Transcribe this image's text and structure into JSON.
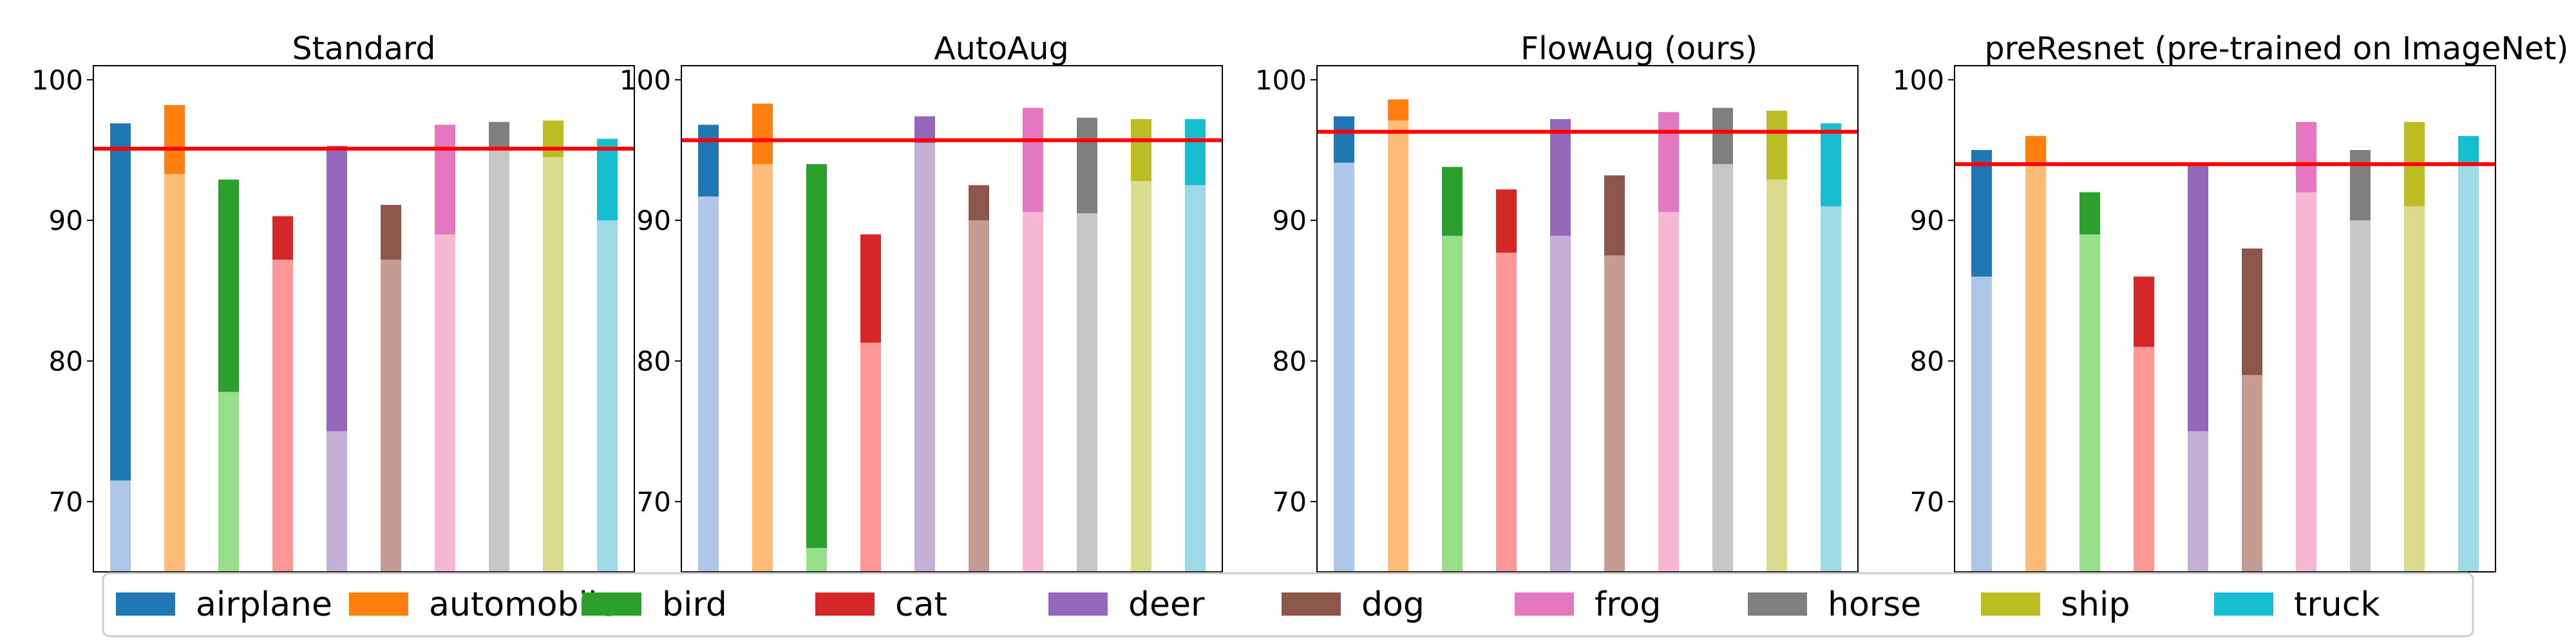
{
  "chart_data": {
    "type": "bar",
    "variant": "floating range bars (light = lower value, dark = upper value) with red horizontal mean line",
    "categories": [
      "airplane",
      "automobile",
      "bird",
      "cat",
      "deer",
      "dog",
      "frog",
      "horse",
      "ship",
      "truck"
    ],
    "ylim": [
      65,
      101
    ],
    "yticks": [
      70,
      80,
      90,
      100
    ],
    "grid": false,
    "legend_position": "bottom",
    "colors": {
      "dark": [
        "#1f77b4",
        "#ff7f0e",
        "#2ca02c",
        "#d62728",
        "#9467bd",
        "#8c564b",
        "#e377c2",
        "#7f7f7f",
        "#bcbd22",
        "#17becf"
      ],
      "light": [
        "#aec7e8",
        "#ffbb78",
        "#98df8a",
        "#ff9896",
        "#c5b0d5",
        "#c49c94",
        "#f7b6d2",
        "#c7c7c7",
        "#dbdb8d",
        "#9edae5"
      ],
      "mean_line": "#ff0000"
    },
    "panels": [
      {
        "title": "Standard",
        "low": [
          71.5,
          93.3,
          77.8,
          87.2,
          75.0,
          87.2,
          89.0,
          95.0,
          94.5,
          90.0
        ],
        "high": [
          96.9,
          98.2,
          92.9,
          90.3,
          95.3,
          91.1,
          96.8,
          97.0,
          97.1,
          95.8
        ],
        "mean": 95.1
      },
      {
        "title": "AutoAug",
        "low": [
          91.7,
          94.0,
          66.7,
          81.3,
          95.5,
          90.0,
          90.6,
          90.5,
          92.8,
          92.5
        ],
        "high": [
          96.8,
          98.3,
          94.0,
          89.0,
          97.4,
          92.5,
          98.0,
          97.3,
          97.2,
          97.2
        ],
        "mean": 95.7
      },
      {
        "title": "FlowAug (ours)",
        "low": [
          94.1,
          97.1,
          88.9,
          87.7,
          88.9,
          87.5,
          90.6,
          94.0,
          92.9,
          91.0
        ],
        "high": [
          97.4,
          98.6,
          93.8,
          92.2,
          97.2,
          93.2,
          97.7,
          98.0,
          97.8,
          96.9
        ],
        "mean": 96.3
      },
      {
        "title": "preResnet (pre-trained on ImageNet)",
        "low": [
          86.0,
          94.0,
          89.0,
          81.0,
          75.0,
          79.0,
          92.0,
          90.0,
          91.0,
          94.0
        ],
        "high": [
          95.0,
          96.0,
          92.0,
          86.0,
          94.0,
          88.0,
          97.0,
          95.0,
          97.0,
          96.0
        ],
        "mean": 94.0
      }
    ]
  }
}
